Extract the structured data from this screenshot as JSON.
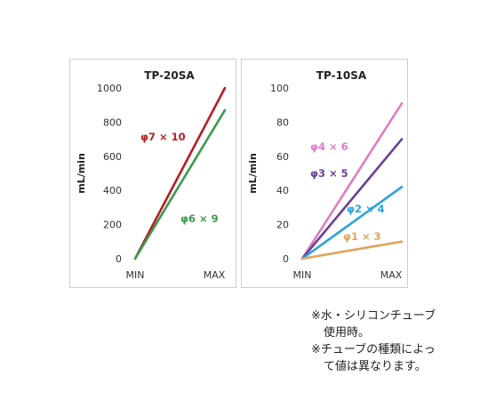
{
  "chart_data": [
    {
      "type": "line",
      "title": "TP-20SA",
      "ylabel": "mL/min",
      "xlabel": "",
      "x_ticks": [
        "MIN",
        "MAX"
      ],
      "ylim": [
        0,
        1000
      ],
      "y_ticks": [
        0,
        200,
        400,
        600,
        800,
        1000
      ],
      "grid": false,
      "series": [
        {
          "name": "φ7 × 10",
          "color": "#b81c22",
          "x": [
            0,
            1
          ],
          "y": [
            0,
            1000
          ]
        },
        {
          "name": "φ6 × 9",
          "color": "#3a9b4c",
          "x": [
            0,
            1
          ],
          "y": [
            0,
            870
          ]
        }
      ]
    },
    {
      "type": "line",
      "title": "TP-10SA",
      "ylabel": "mL/min",
      "xlabel": "",
      "x_ticks": [
        "MIN",
        "MAX"
      ],
      "ylim": [
        0,
        100
      ],
      "y_ticks": [
        0,
        20,
        40,
        60,
        80,
        100
      ],
      "grid": false,
      "series": [
        {
          "name": "φ4 × 6",
          "color": "#e07cc4",
          "x": [
            0,
            1
          ],
          "y": [
            0,
            91
          ]
        },
        {
          "name": "φ3 × 5",
          "color": "#6a3f97",
          "x": [
            0,
            1
          ],
          "y": [
            0,
            70
          ]
        },
        {
          "name": "φ2 × 4",
          "color": "#29a3db",
          "x": [
            0,
            1
          ],
          "y": [
            0,
            42
          ]
        },
        {
          "name": "φ1 × 3",
          "color": "#e0a35a",
          "x": [
            0,
            1
          ],
          "y": [
            0,
            10
          ]
        }
      ]
    }
  ],
  "notes": {
    "line1": "※水・シリコンチューブ",
    "line2": "使用時。",
    "line3": "※チューブの種類によっ",
    "line4": "て値は異なります。"
  }
}
